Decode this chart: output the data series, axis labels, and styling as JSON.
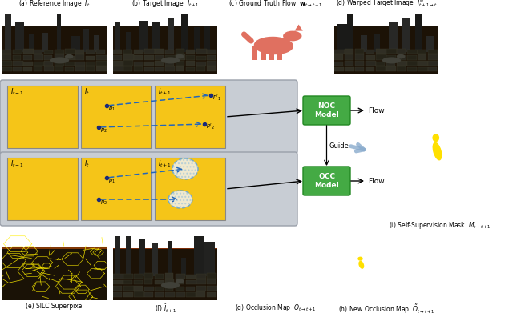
{
  "background_color": "#ffffff",
  "panel_labels": {
    "a": "(a) Reference Image  $I_t$",
    "b": "(b) Target Image  $I_{t+1}$",
    "c": "(c) Ground Truth Flow  $\\mathbf{w}_{t\\rightarrow t+1}$",
    "d": "(d) Warped Target Image  $I^w_{t+1\\rightarrow t}$",
    "e": "(e) SILC Superpixel",
    "f": "(f) $\\tilde{I}_{t+1}$",
    "g": "(g) Occlusion Map  $O_{t\\rightarrow t+1}$",
    "h": "(h) New Occlusion Map  $\\tilde{O}_{t\\rightarrow t+1}$",
    "i": "(i) Self-Supervision Mask  $M_{t\\rightarrow t+1}$"
  },
  "noc_label": "NOC\nModel",
  "occ_label": "OCC\nModel",
  "yellow": "#F5C518",
  "green_dark": "#3BAA3B",
  "gray_bg": "#C8CDD4"
}
